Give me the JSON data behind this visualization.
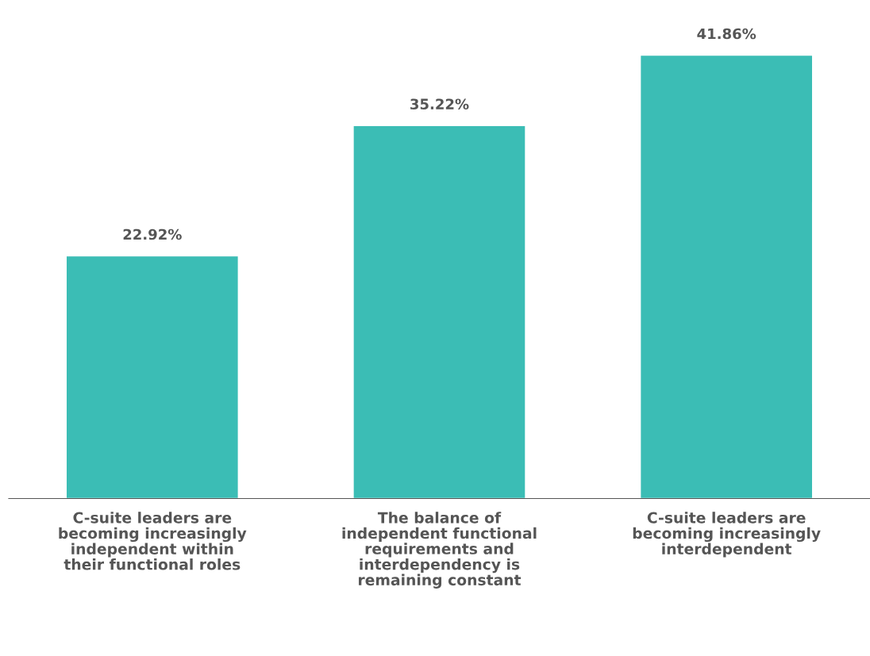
{
  "chart_data": {
    "type": "bar",
    "categories": [
      "C-suite leaders are\nbecoming increasingly\nindependent within\ntheir functional roles",
      "The balance of\nindependent functional\nrequirements and\ninterdependency is\nremaining constant",
      "C-suite leaders are\nbecoming increasingly\ninterdependent"
    ],
    "values": [
      22.92,
      35.22,
      41.86
    ],
    "value_labels": [
      "22.92%",
      "35.22%",
      "41.86%"
    ],
    "color": "#3bbdb5",
    "grid": false,
    "legend": false
  }
}
